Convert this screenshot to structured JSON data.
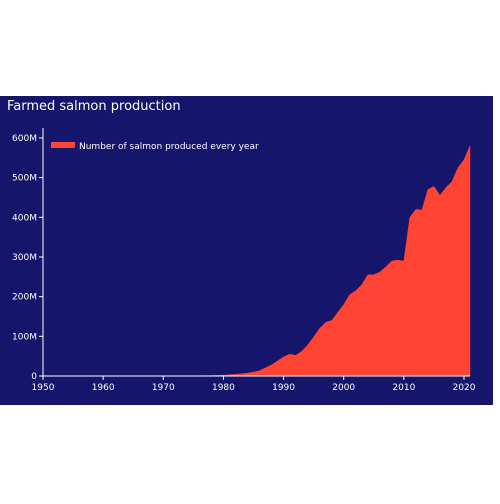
{
  "chart_data": {
    "type": "area",
    "title": "Farmed salmon production",
    "xlabel": "",
    "ylabel": "",
    "xlim": [
      1950,
      2021
    ],
    "ylim": [
      0,
      610000000
    ],
    "grid": false,
    "legend_position": "top-left",
    "background_color": "#15166b",
    "text_color": "#ffffff",
    "x_ticks": [
      {
        "value": 1950,
        "label": "1950"
      },
      {
        "value": 1960,
        "label": "1960"
      },
      {
        "value": 1970,
        "label": "1970"
      },
      {
        "value": 1980,
        "label": "1980"
      },
      {
        "value": 1990,
        "label": "1990"
      },
      {
        "value": 2000,
        "label": "2000"
      },
      {
        "value": 2010,
        "label": "2010"
      },
      {
        "value": 2020,
        "label": "2020"
      }
    ],
    "y_ticks": [
      {
        "value": 0,
        "label": "0"
      },
      {
        "value": 100000000,
        "label": "100M"
      },
      {
        "value": 200000000,
        "label": "200M"
      },
      {
        "value": 300000000,
        "label": "300M"
      },
      {
        "value": 400000000,
        "label": "400M"
      },
      {
        "value": 500000000,
        "label": "500M"
      },
      {
        "value": 600000000,
        "label": "600M"
      }
    ],
    "series": [
      {
        "name": "Number of salmon produced every year",
        "color": "#ff4433",
        "x": [
          1950,
          1955,
          1960,
          1965,
          1970,
          1975,
          1978,
          1980,
          1982,
          1984,
          1986,
          1988,
          1990,
          1991,
          1992,
          1993,
          1994,
          1995,
          1996,
          1997,
          1998,
          1999,
          2000,
          2001,
          2002,
          2003,
          2004,
          2005,
          2006,
          2007,
          2008,
          2009,
          2010,
          2011,
          2012,
          2013,
          2014,
          2015,
          2016,
          2017,
          2018,
          2019,
          2020,
          2021
        ],
        "y": [
          0,
          0,
          0,
          0,
          200000,
          500000,
          1000000,
          2000000,
          4000000,
          7000000,
          13000000,
          28000000,
          48000000,
          55000000,
          52000000,
          62000000,
          78000000,
          98000000,
          120000000,
          135000000,
          140000000,
          160000000,
          180000000,
          205000000,
          215000000,
          230000000,
          255000000,
          255000000,
          262000000,
          275000000,
          290000000,
          292000000,
          290000000,
          400000000,
          420000000,
          418000000,
          470000000,
          478000000,
          455000000,
          475000000,
          490000000,
          525000000,
          545000000,
          580000000
        ]
      }
    ]
  }
}
